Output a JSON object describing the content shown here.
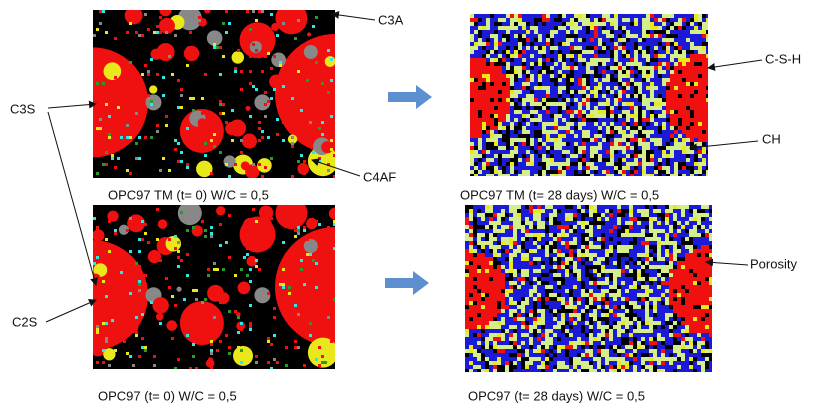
{
  "labels": {
    "c3a": "C3A",
    "c3s": "C3S",
    "c4af": "C4AF",
    "csh": "C-S-H",
    "ch": "CH",
    "porosity": "Porosity",
    "c2s": "C2S"
  },
  "captions": [
    "OPC97 TM (t= 0) W/C = 0,5",
    "OPC97 TM (t= 28 days) W/C = 0,5",
    "OPC97 (t= 0) W/C = 0,5",
    "OPC97 (t= 28 days) W/C = 0,5"
  ]
}
